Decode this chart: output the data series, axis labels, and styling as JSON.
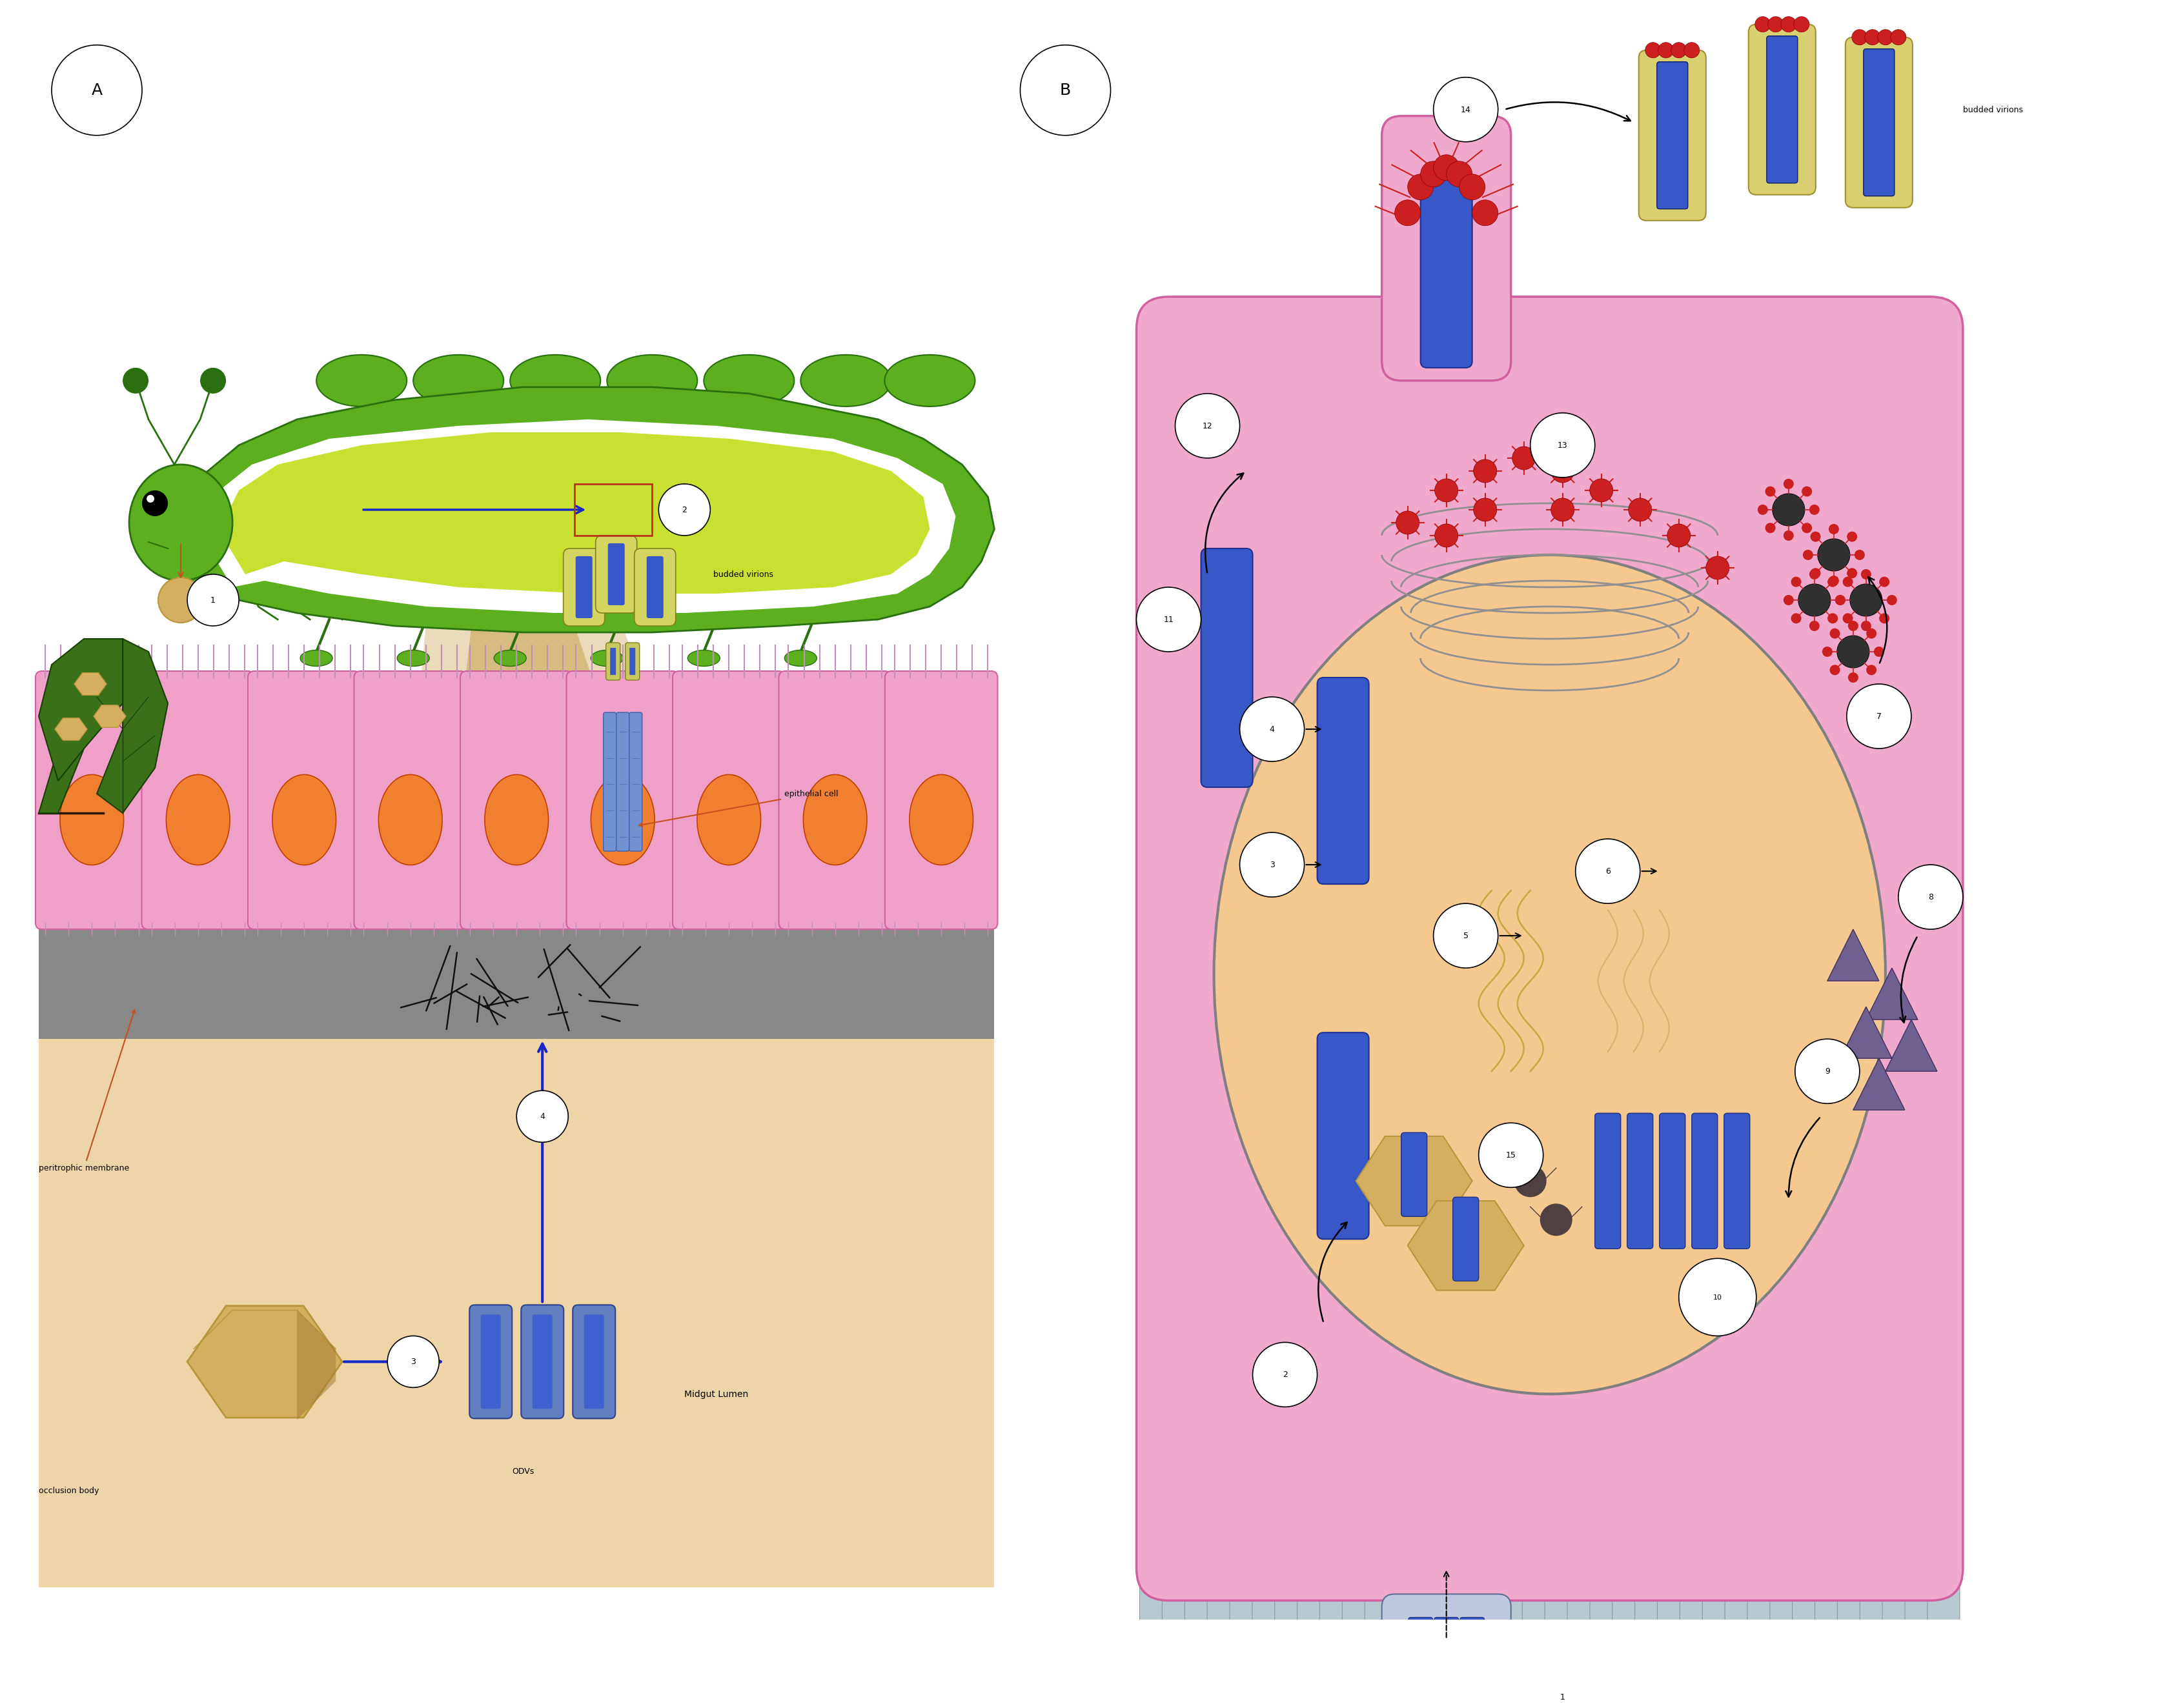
{
  "fig_width": 33.51,
  "fig_height": 25.01,
  "bg_color": "#ffffff",
  "colors": {
    "pink_cell": "#F0A0C8",
    "pink_dark": "#D060A0",
    "orange_nucleus": "#F08030",
    "green_cat": "#5CB020",
    "dark_green": "#2A7010",
    "yellow_green": "#C8E040",
    "white": "#FFFFFF",
    "blue_virus": "#3858C8",
    "dark_blue": "#1830A0",
    "gray_mem": "#888888",
    "dark_gray": "#404040",
    "tan_lumen": "#EDD5A8",
    "tan_occlusion": "#B8963C",
    "tan_occlusion2": "#D4AF60",
    "red_spike": "#CC2020",
    "arrow_blue": "#1828C8",
    "arrow_orange": "#C85020",
    "peach": "#F2D0A0",
    "leaf_dark": "#2A6015",
    "leaf_mid": "#3A8020",
    "microvilli": "#C090B8",
    "mv_gray": "#AABBC0",
    "golgi_gray": "#909090",
    "nucleus_fill": "#F5C890",
    "nucleus_border": "#808080",
    "tan_funnel": "#D4B878",
    "budded_env": "#D8D070",
    "purple_tri": "#706090",
    "brown_oct": "#9B7D40"
  }
}
